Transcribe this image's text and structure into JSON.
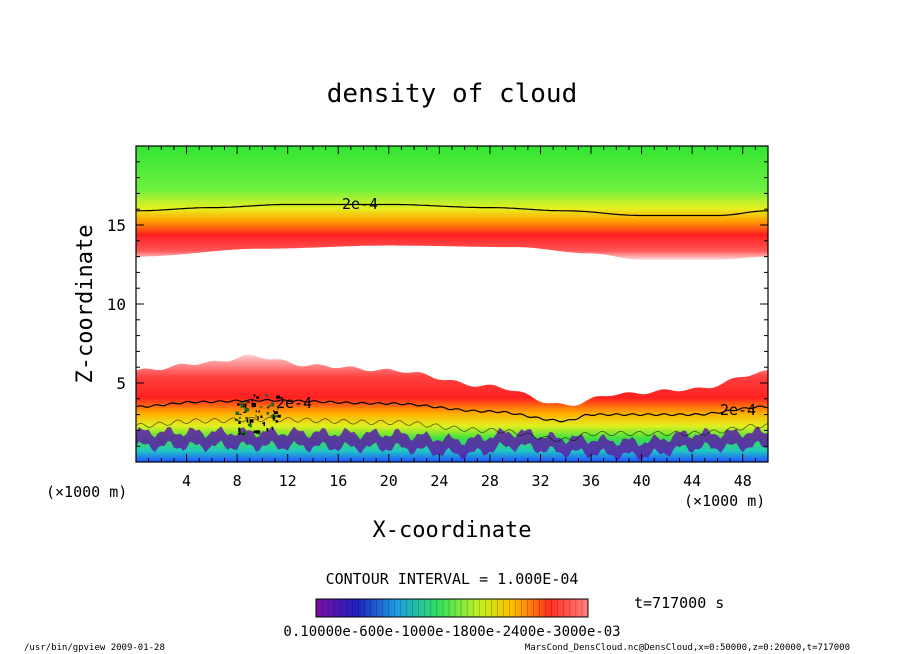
{
  "chart_data": {
    "type": "heatmap",
    "title": "density of cloud",
    "xlabel": "X-coordinate",
    "ylabel": "Z-coordinate",
    "x_unit_left": "(×1000 m)",
    "x_unit_right": "(×1000 m)",
    "xlim": [
      0,
      50
    ],
    "ylim": [
      0,
      20
    ],
    "x_ticks": [
      "4",
      "8",
      "12",
      "16",
      "20",
      "24",
      "28",
      "32",
      "36",
      "40",
      "44",
      "48"
    ],
    "y_ticks": [
      "5",
      "10",
      "15"
    ],
    "contour_label": "2e-4",
    "contour_interval_text": "CONTOUR INTERVAL = 1.000E-04",
    "time_text": "t=717000  s",
    "colorbar_labels": "0.10000e-600e-1000e-1800e-2400e-3000e-03",
    "footer_left": "/usr/bin/gpview  2009-01-28",
    "footer_right": "MarsCond_DensCloud.nc@DensCloud,x=0:50000,z=0:20000,t=717000",
    "upper_contour_z": [
      [
        0,
        15.9
      ],
      [
        6,
        16.1
      ],
      [
        12,
        16.3
      ],
      [
        20,
        16.3
      ],
      [
        28,
        16.1
      ],
      [
        34,
        15.9
      ],
      [
        40,
        15.6
      ],
      [
        46,
        15.6
      ],
      [
        50,
        15.9
      ]
    ],
    "upper_cloud_base_z": [
      [
        0,
        13.0
      ],
      [
        10,
        13.5
      ],
      [
        20,
        13.7
      ],
      [
        30,
        13.6
      ],
      [
        36,
        13.2
      ],
      [
        40,
        12.8
      ],
      [
        46,
        12.8
      ],
      [
        50,
        13.0
      ]
    ],
    "lower_cloud_top_z": [
      [
        0,
        5.8
      ],
      [
        6,
        6.3
      ],
      [
        9,
        6.7
      ],
      [
        14,
        6.1
      ],
      [
        20,
        5.8
      ],
      [
        28,
        4.8
      ],
      [
        34,
        3.6
      ],
      [
        38,
        4.3
      ],
      [
        44,
        4.6
      ],
      [
        50,
        5.7
      ]
    ],
    "lower_contour_z": [
      [
        0,
        3.5
      ],
      [
        5,
        3.8
      ],
      [
        10,
        3.9
      ],
      [
        20,
        3.7
      ],
      [
        28,
        3.2
      ],
      [
        34,
        2.6
      ],
      [
        36,
        3.0
      ],
      [
        44,
        3.0
      ],
      [
        50,
        3.5
      ]
    ],
    "surface_z": [
      [
        0,
        1.0
      ],
      [
        10,
        1.0
      ],
      [
        20,
        0.9
      ],
      [
        26,
        0.5
      ],
      [
        30,
        1.0
      ],
      [
        34,
        0.6
      ],
      [
        40,
        0.4
      ],
      [
        44,
        0.9
      ],
      [
        50,
        1.0
      ]
    ]
  }
}
